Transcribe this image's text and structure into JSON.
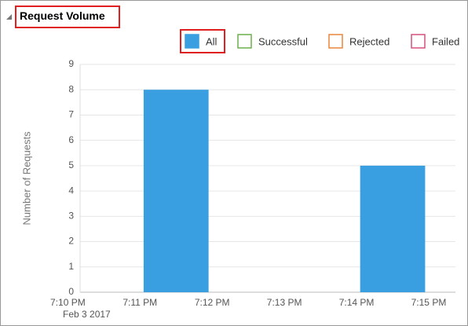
{
  "chart_data": {
    "type": "bar",
    "title": "Request Volume",
    "y_label": "Number of Requests",
    "x_date_label": "Feb 3 2017",
    "x": [
      1.5,
      4.5
    ],
    "xlim": [
      0.17,
      5.37
    ],
    "xticks": [
      {
        "value": 0,
        "label": "7:10 PM"
      },
      {
        "value": 1,
        "label": "7:11 PM"
      },
      {
        "value": 2,
        "label": "7:12 PM"
      },
      {
        "value": 3,
        "label": "7:13 PM"
      },
      {
        "value": 4,
        "label": "7:14 PM"
      },
      {
        "value": 5,
        "label": "7:15 PM"
      }
    ],
    "ylim": [
      0,
      9
    ],
    "yticks": [
      0,
      1,
      2,
      3,
      4,
      5,
      6,
      7,
      8,
      9
    ],
    "grid": true,
    "series": [
      {
        "name": "All",
        "color": "#3a9fe0",
        "visible": true,
        "values": [
          8,
          5
        ]
      },
      {
        "name": "Successful",
        "color": "#6ab04c",
        "visible": false,
        "values": [
          null,
          null
        ]
      },
      {
        "name": "Rejected",
        "color": "#e8863a",
        "visible": false,
        "values": [
          null,
          null
        ]
      },
      {
        "name": "Failed",
        "color": "#d6517d",
        "visible": false,
        "values": [
          null,
          null
        ]
      }
    ]
  }
}
